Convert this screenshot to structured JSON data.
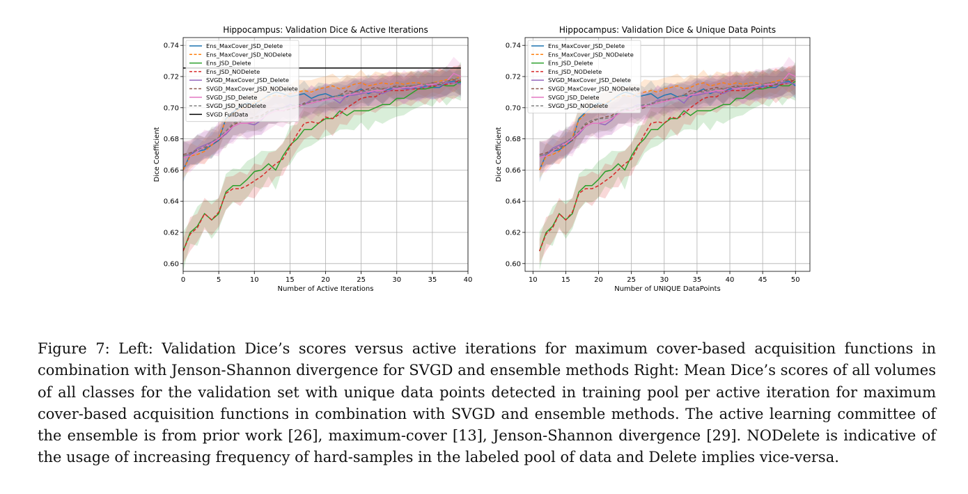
{
  "caption": "Figure 7: Left: Validation Dice’s scores versus active iterations for maximum cover-based acquisition functions in combination with Jenson-Shannon divergence for SVGD and ensemble methods Right: Mean Dice’s scores of all volumes of all classes for the validation set with unique data points detected in training pool per active iteration for maximum cover-based acquisition functions in combination with SVGD and ensemble methods. The active learning committee of the ensemble is from prior work [26], maximum-cover [13], Jenson-Shannon divergence [29]. NODelete is indicative of the usage of increasing frequency of hard-samples in the labeled pool of data and Delete implies vice-versa.",
  "series_styles": [
    {
      "name": "Ens_MaxCover_JSD_Delete",
      "color": "#1f77b4",
      "dash": "solid"
    },
    {
      "name": "Ens_MaxCover_JSD_NODelete",
      "color": "#ff7f0e",
      "dash": "dashed"
    },
    {
      "name": "Ens_JSD_Delete",
      "color": "#2ca02c",
      "dash": "solid"
    },
    {
      "name": "Ens_JSD_NODelete",
      "color": "#d62728",
      "dash": "dashed"
    },
    {
      "name": "SVGD_MaxCover_JSD_Delete",
      "color": "#9467bd",
      "dash": "solid"
    },
    {
      "name": "SVGD_MaxCover_JSD_NODelete",
      "color": "#8c564b",
      "dash": "dashed"
    },
    {
      "name": "SVGD_JSD_Delete",
      "color": "#e377c2",
      "dash": "solid"
    },
    {
      "name": "SVGD_JSD_NODelete",
      "color": "#7f7f7f",
      "dash": "dashed"
    }
  ],
  "chart_data": [
    {
      "type": "line",
      "title": "Hippocampus: Validation Dice & Active Iterations",
      "xlabel": "Number of Active Iterations",
      "ylabel": "Dice Coefficient",
      "xlim": [
        0,
        40
      ],
      "ylim": [
        0.595,
        0.745
      ],
      "xticks": [
        0,
        5,
        10,
        15,
        20,
        25,
        30,
        35,
        40
      ],
      "yticks": [
        0.6,
        0.62,
        0.64,
        0.66,
        0.68,
        0.7,
        0.72,
        0.74
      ],
      "grid": true,
      "legend": "top-left",
      "x": [
        0,
        1,
        2,
        3,
        4,
        5,
        6,
        7,
        8,
        9,
        10,
        11,
        12,
        13,
        14,
        15,
        16,
        17,
        18,
        19,
        20,
        21,
        22,
        23,
        24,
        25,
        26,
        27,
        28,
        29,
        30,
        31,
        32,
        33,
        34,
        35,
        36,
        37,
        38,
        39
      ],
      "series": [
        {
          "name": "Ens_MaxCover_JSD_Delete",
          "values": [
            0.66,
            0.67,
            0.672,
            0.673,
            0.676,
            0.679,
            0.693,
            0.697,
            0.701,
            0.703,
            0.702,
            0.705,
            0.708,
            0.71,
            0.709,
            0.707,
            0.708,
            0.709,
            0.706,
            0.708,
            0.709,
            0.707,
            0.708,
            0.707,
            0.71,
            0.712,
            0.709,
            0.711,
            0.711,
            0.712,
            0.713,
            0.712,
            0.713,
            0.712,
            0.714,
            0.713,
            0.713,
            0.716,
            0.717,
            0.716
          ],
          "band": 0.006
        },
        {
          "name": "Ens_MaxCover_JSD_NODelete",
          "values": [
            0.66,
            0.669,
            0.67,
            0.672,
            0.676,
            0.681,
            0.692,
            0.696,
            0.699,
            0.701,
            0.703,
            0.705,
            0.707,
            0.708,
            0.707,
            0.709,
            0.71,
            0.711,
            0.71,
            0.712,
            0.713,
            0.714,
            0.712,
            0.713,
            0.715,
            0.716,
            0.714,
            0.715,
            0.716,
            0.715,
            0.716,
            0.715,
            0.716,
            0.716,
            0.715,
            0.716,
            0.717,
            0.718,
            0.718,
            0.72
          ],
          "band": 0.006
        },
        {
          "name": "Ens_JSD_Delete",
          "values": [
            0.608,
            0.62,
            0.624,
            0.632,
            0.628,
            0.632,
            0.646,
            0.65,
            0.65,
            0.654,
            0.659,
            0.66,
            0.664,
            0.66,
            0.669,
            0.676,
            0.68,
            0.686,
            0.686,
            0.69,
            0.693,
            0.693,
            0.698,
            0.695,
            0.698,
            0.698,
            0.698,
            0.7,
            0.702,
            0.702,
            0.706,
            0.706,
            0.709,
            0.712,
            0.712,
            0.713,
            0.715,
            0.714,
            0.714,
            0.717
          ],
          "band": 0.009
        },
        {
          "name": "Ens_JSD_NODelete",
          "values": [
            0.608,
            0.619,
            0.623,
            0.632,
            0.628,
            0.633,
            0.645,
            0.648,
            0.648,
            0.65,
            0.653,
            0.656,
            0.66,
            0.664,
            0.667,
            0.675,
            0.683,
            0.69,
            0.691,
            0.69,
            0.694,
            0.693,
            0.696,
            0.7,
            0.703,
            0.706,
            0.707,
            0.707,
            0.71,
            0.711,
            0.711,
            0.711,
            0.712,
            0.712,
            0.713,
            0.714,
            0.714,
            0.715,
            0.716,
            0.718
          ],
          "band": 0.008
        },
        {
          "name": "SVGD_MaxCover_JSD_Delete",
          "values": [
            0.669,
            0.67,
            0.674,
            0.676,
            0.678,
            0.68,
            0.683,
            0.688,
            0.69,
            0.69,
            0.689,
            0.692,
            0.697,
            0.699,
            0.7,
            0.702,
            0.701,
            0.702,
            0.705,
            0.705,
            0.706,
            0.706,
            0.703,
            0.708,
            0.708,
            0.709,
            0.71,
            0.71,
            0.709,
            0.711,
            0.713,
            0.712,
            0.712,
            0.714,
            0.713,
            0.715,
            0.714,
            0.716,
            0.716,
            0.715
          ],
          "band": 0.007
        },
        {
          "name": "SVGD_MaxCover_JSD_NODelete",
          "values": [
            0.67,
            0.671,
            0.673,
            0.674,
            0.677,
            0.679,
            0.684,
            0.689,
            0.691,
            0.693,
            0.694,
            0.695,
            0.698,
            0.699,
            0.698,
            0.699,
            0.7,
            0.703,
            0.703,
            0.704,
            0.706,
            0.707,
            0.708,
            0.711,
            0.71,
            0.711,
            0.712,
            0.713,
            0.712,
            0.713,
            0.714,
            0.713,
            0.714,
            0.714,
            0.715,
            0.716,
            0.715,
            0.717,
            0.718,
            0.717
          ],
          "band": 0.007
        },
        {
          "name": "SVGD_JSD_Delete",
          "values": [
            0.668,
            0.669,
            0.672,
            0.675,
            0.677,
            0.68,
            0.684,
            0.688,
            0.69,
            0.69,
            0.691,
            0.693,
            0.696,
            0.698,
            0.698,
            0.7,
            0.701,
            0.702,
            0.703,
            0.704,
            0.705,
            0.706,
            0.706,
            0.708,
            0.709,
            0.71,
            0.71,
            0.711,
            0.711,
            0.713,
            0.712,
            0.713,
            0.713,
            0.714,
            0.715,
            0.715,
            0.716,
            0.717,
            0.722,
            0.72
          ],
          "band": 0.008
        },
        {
          "name": "SVGD_JSD_NODelete",
          "values": [
            0.669,
            0.67,
            0.673,
            0.675,
            0.678,
            0.681,
            0.685,
            0.69,
            0.692,
            0.693,
            0.693,
            0.694,
            0.697,
            0.699,
            0.7,
            0.701,
            0.702,
            0.702,
            0.704,
            0.705,
            0.706,
            0.707,
            0.708,
            0.709,
            0.71,
            0.71,
            0.711,
            0.712,
            0.712,
            0.713,
            0.713,
            0.714,
            0.714,
            0.715,
            0.715,
            0.716,
            0.716,
            0.717,
            0.719,
            0.718
          ],
          "band": 0.007
        },
        {
          "name": "SVGD FullData",
          "values": [
            0.7255,
            0.7255
          ],
          "x": [
            0,
            39
          ],
          "color": "#000000",
          "dash": "solid",
          "band": 0
        }
      ]
    },
    {
      "type": "line",
      "title": "Hippocampus: Validation Dice & Unique Data Points",
      "xlabel": "Number of UNIQUE DataPoints",
      "ylabel": "Dice Coefficient",
      "xlim": [
        8.8,
        52.2
      ],
      "ylim": [
        0.595,
        0.745
      ],
      "xticks": [
        10,
        15,
        20,
        25,
        30,
        35,
        40,
        45,
        50
      ],
      "yticks": [
        0.6,
        0.62,
        0.64,
        0.66,
        0.68,
        0.7,
        0.72,
        0.74
      ],
      "grid": true,
      "legend": "top-left",
      "x": [
        11,
        12,
        13,
        14,
        15,
        16,
        17,
        18,
        19,
        20,
        21,
        22,
        23,
        24,
        25,
        26,
        27,
        28,
        29,
        30,
        31,
        32,
        33,
        34,
        35,
        36,
        37,
        38,
        39,
        40,
        41,
        42,
        43,
        44,
        45,
        46,
        47,
        48,
        49,
        50
      ],
      "series": [
        {
          "name": "Ens_MaxCover_JSD_Delete",
          "values": [
            0.66,
            0.67,
            0.672,
            0.673,
            0.676,
            0.679,
            0.693,
            0.697,
            0.701,
            0.703,
            0.702,
            0.705,
            0.708,
            0.71,
            0.709,
            0.707,
            0.708,
            0.709,
            0.706,
            0.708,
            0.709,
            0.707,
            0.708,
            0.707,
            0.71,
            0.712,
            0.709,
            0.711,
            0.711,
            0.712,
            0.713,
            0.712,
            0.713,
            0.712,
            0.714,
            0.713,
            0.713,
            0.716,
            0.717,
            0.714
          ],
          "band": 0.006
        },
        {
          "name": "Ens_MaxCover_JSD_NODelete",
          "values": [
            0.66,
            0.669,
            0.67,
            0.672,
            0.676,
            0.681,
            0.692,
            0.696,
            0.699,
            0.701,
            0.703,
            0.705,
            0.707,
            0.708,
            0.707,
            0.709,
            0.71,
            0.711,
            0.71,
            0.712,
            0.713,
            0.714,
            0.712,
            0.713,
            0.715,
            0.716,
            0.714,
            0.715,
            0.716,
            0.715,
            0.716,
            0.715,
            0.716,
            0.716,
            0.715,
            0.716,
            0.717,
            0.718,
            0.718,
            0.718
          ],
          "band": 0.006
        },
        {
          "name": "Ens_JSD_Delete",
          "values": [
            0.608,
            0.62,
            0.624,
            0.632,
            0.628,
            0.632,
            0.646,
            0.65,
            0.65,
            0.654,
            0.659,
            0.66,
            0.664,
            0.66,
            0.669,
            0.676,
            0.68,
            0.686,
            0.686,
            0.69,
            0.693,
            0.693,
            0.698,
            0.695,
            0.698,
            0.698,
            0.698,
            0.7,
            0.702,
            0.702,
            0.706,
            0.706,
            0.709,
            0.712,
            0.712,
            0.713,
            0.715,
            0.714,
            0.714,
            0.717
          ],
          "band": 0.009
        },
        {
          "name": "Ens_JSD_NODelete",
          "values": [
            0.608,
            0.619,
            0.623,
            0.632,
            0.628,
            0.633,
            0.645,
            0.648,
            0.648,
            0.65,
            0.653,
            0.656,
            0.66,
            0.664,
            0.667,
            0.675,
            0.683,
            0.69,
            0.691,
            0.69,
            0.694,
            0.693,
            0.696,
            0.7,
            0.703,
            0.706,
            0.707,
            0.707,
            0.71,
            0.711,
            0.711,
            0.711,
            0.712,
            0.712,
            0.713,
            0.714,
            0.714,
            0.715,
            0.716,
            0.718
          ],
          "band": 0.008
        },
        {
          "name": "SVGD_MaxCover_JSD_Delete",
          "values": [
            0.669,
            0.67,
            0.674,
            0.676,
            0.678,
            0.68,
            0.683,
            0.688,
            0.69,
            0.69,
            0.689,
            0.692,
            0.697,
            0.699,
            0.7,
            0.702,
            0.701,
            0.702,
            0.705,
            0.705,
            0.706,
            0.706,
            0.703,
            0.708,
            0.708,
            0.709,
            0.71,
            0.71,
            0.709,
            0.711,
            0.713,
            0.712,
            0.712,
            0.714,
            0.713,
            0.715,
            0.714,
            0.716,
            0.716,
            0.715
          ],
          "band": 0.007
        },
        {
          "name": "SVGD_MaxCover_JSD_NODelete",
          "values": [
            0.67,
            0.671,
            0.673,
            0.674,
            0.677,
            0.679,
            0.684,
            0.689,
            0.691,
            0.693,
            0.694,
            0.695,
            0.698,
            0.699,
            0.698,
            0.699,
            0.7,
            0.703,
            0.703,
            0.704,
            0.706,
            0.707,
            0.708,
            0.711,
            0.71,
            0.711,
            0.712,
            0.713,
            0.712,
            0.713,
            0.714,
            0.713,
            0.714,
            0.714,
            0.715,
            0.716,
            0.715,
            0.717,
            0.718,
            0.717
          ],
          "band": 0.007
        },
        {
          "name": "SVGD_JSD_Delete",
          "values": [
            0.668,
            0.669,
            0.672,
            0.675,
            0.677,
            0.68,
            0.684,
            0.688,
            0.69,
            0.69,
            0.691,
            0.693,
            0.696,
            0.698,
            0.698,
            0.7,
            0.701,
            0.702,
            0.703,
            0.704,
            0.705,
            0.706,
            0.706,
            0.708,
            0.709,
            0.71,
            0.71,
            0.711,
            0.711,
            0.713,
            0.712,
            0.713,
            0.713,
            0.714,
            0.715,
            0.715,
            0.716,
            0.717,
            0.722,
            0.72
          ],
          "band": 0.008
        },
        {
          "name": "SVGD_JSD_NODelete",
          "values": [
            0.669,
            0.67,
            0.673,
            0.675,
            0.678,
            0.681,
            0.685,
            0.69,
            0.692,
            0.693,
            0.693,
            0.694,
            0.697,
            0.699,
            0.7,
            0.701,
            0.702,
            0.702,
            0.704,
            0.705,
            0.706,
            0.707,
            0.708,
            0.709,
            0.71,
            0.71,
            0.711,
            0.712,
            0.712,
            0.713,
            0.713,
            0.714,
            0.714,
            0.715,
            0.715,
            0.716,
            0.716,
            0.717,
            0.719,
            0.718
          ],
          "band": 0.007
        }
      ]
    }
  ]
}
